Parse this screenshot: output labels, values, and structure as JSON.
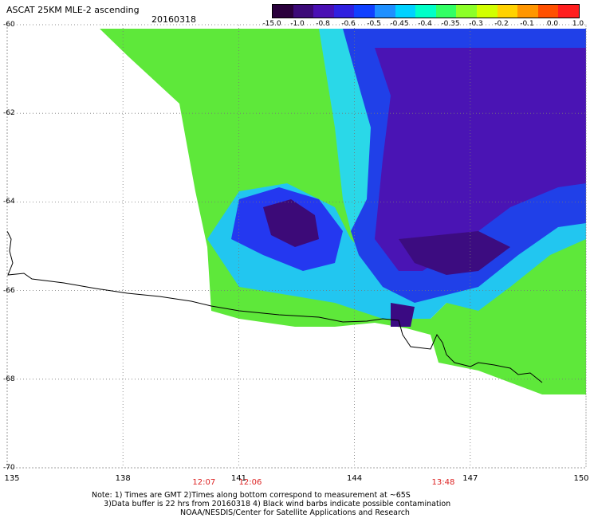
{
  "header": {
    "title": "ASCAT 25KM MLE-2 ascending",
    "date": "20160318"
  },
  "colorbar": {
    "labels": [
      "-15.0",
      "-1.0",
      "-0.8",
      "-0.6",
      "-0.5",
      "-0.45",
      "-0.4",
      "-0.35",
      "-0.3",
      "-0.2",
      "-0.1",
      "0.0",
      "1.0"
    ],
    "colors": [
      "#2a003c",
      "#3c0a78",
      "#4a10b4",
      "#3020e0",
      "#1040ff",
      "#1e90ff",
      "#00d2ff",
      "#00ffc8",
      "#32ff64",
      "#8cff28",
      "#d2ff00",
      "#ffd200",
      "#ff9600",
      "#ff5000",
      "#ff1e1e"
    ]
  },
  "map": {
    "lon_range": [
      135,
      150
    ],
    "lat_range": [
      -70,
      -60
    ],
    "lat_labels": [
      "-60",
      "-62",
      "-64",
      "-66",
      "-68",
      "-70"
    ],
    "lon_labels": [
      "135",
      "138",
      "141",
      "144",
      "147",
      "150"
    ],
    "time_labels": [
      {
        "text": "12:07",
        "lon": 140.1
      },
      {
        "text": "12:06",
        "lon": 141.3
      },
      {
        "text": "13:48",
        "lon": 146.3
      }
    ]
  },
  "note": "Note: 1) Times are GMT 2)Times along bottom correspond to measurement at ~65S\n     3)Data buffer is 22 hrs from 20160318 4) Black wind barbs indicate possible contamination",
  "credit": "NOAA/NESDIS/Center for Satellite Applications and Research"
}
